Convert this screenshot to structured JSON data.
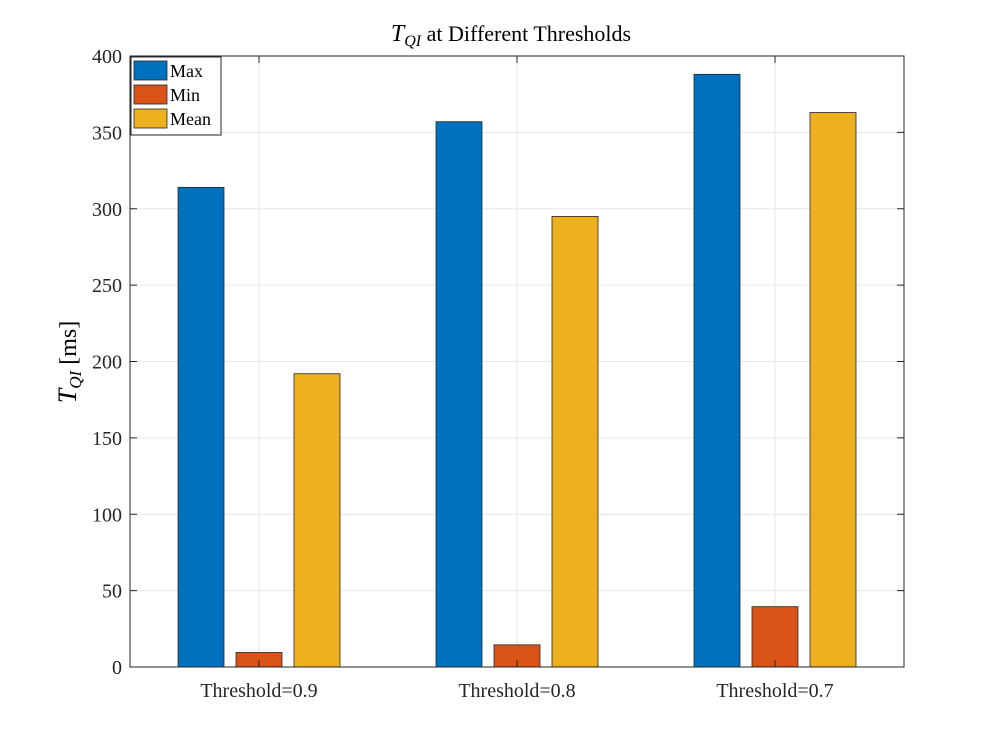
{
  "chart_data": {
    "type": "bar",
    "title_symbol": "T",
    "title_subscript": "QI",
    "title_rest": " at Different Thresholds",
    "ylabel_symbol": "T",
    "ylabel_subscript": "QI",
    "ylabel_rest": " [ms]",
    "xlabel": "",
    "categories": [
      "Threshold=0.9",
      "Threshold=0.8",
      "Threshold=0.7"
    ],
    "series": [
      {
        "name": "Max",
        "color": "#0072BD",
        "values": [
          314,
          357,
          388
        ]
      },
      {
        "name": "Min",
        "color": "#D95319",
        "values": [
          9.5,
          14.5,
          39.5
        ]
      },
      {
        "name": "Mean",
        "color": "#EDB120",
        "values": [
          192,
          295,
          363
        ]
      }
    ],
    "ylim": [
      0,
      400
    ],
    "yticks": [
      0,
      50,
      100,
      150,
      200,
      250,
      300,
      350,
      400
    ],
    "grid": true,
    "legend_position": "top-left"
  }
}
